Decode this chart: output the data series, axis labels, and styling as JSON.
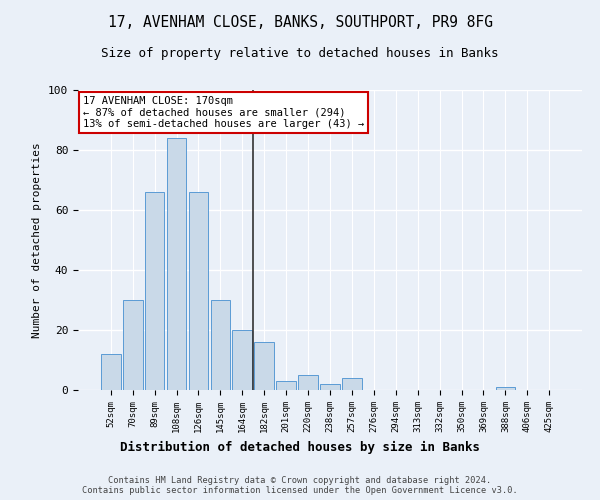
{
  "title1": "17, AVENHAM CLOSE, BANKS, SOUTHPORT, PR9 8FG",
  "title2": "Size of property relative to detached houses in Banks",
  "xlabel": "Distribution of detached houses by size in Banks",
  "ylabel": "Number of detached properties",
  "footnote": "Contains HM Land Registry data © Crown copyright and database right 2024.\nContains public sector information licensed under the Open Government Licence v3.0.",
  "bin_labels": [
    "52sqm",
    "70sqm",
    "89sqm",
    "108sqm",
    "126sqm",
    "145sqm",
    "164sqm",
    "182sqm",
    "201sqm",
    "220sqm",
    "238sqm",
    "257sqm",
    "276sqm",
    "294sqm",
    "313sqm",
    "332sqm",
    "350sqm",
    "369sqm",
    "388sqm",
    "406sqm",
    "425sqm"
  ],
  "bar_heights": [
    12,
    30,
    66,
    84,
    66,
    30,
    20,
    16,
    3,
    5,
    2,
    4,
    0,
    0,
    0,
    0,
    0,
    0,
    1,
    0,
    0
  ],
  "bar_color": "#c9d9e8",
  "bar_edge_color": "#5b9bd5",
  "bg_color": "#eaf0f8",
  "grid_color": "#ffffff",
  "vline_color": "#333333",
  "annotation_text": "17 AVENHAM CLOSE: 170sqm\n← 87% of detached houses are smaller (294)\n13% of semi-detached houses are larger (43) →",
  "annotation_box_color": "#ffffff",
  "annotation_box_edge": "#cc0000",
  "ylim": [
    0,
    100
  ],
  "yticks": [
    0,
    20,
    40,
    60,
    80,
    100
  ]
}
